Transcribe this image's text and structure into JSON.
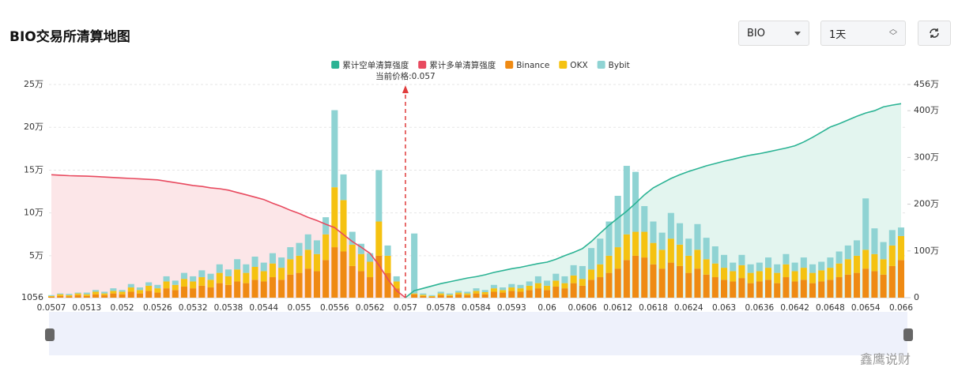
{
  "header": {
    "title": "BIO交易所清算地图",
    "symbol": "BIO",
    "period": "1天"
  },
  "watermark": "鑫鹰说财",
  "chart_data": {
    "type": "bar",
    "stacked": true,
    "grid": true,
    "annotation": {
      "label": "当前价格:",
      "value": 0.057
    },
    "categories": [
      0.0507,
      null,
      null,
      null,
      0.0513,
      null,
      null,
      null,
      0.052,
      null,
      null,
      null,
      0.0526,
      null,
      null,
      null,
      0.0532,
      null,
      null,
      null,
      0.0538,
      null,
      null,
      null,
      0.0544,
      null,
      null,
      null,
      0.055,
      null,
      null,
      null,
      0.0556,
      null,
      null,
      null,
      0.0562,
      null,
      null,
      null,
      0.057,
      null,
      null,
      null,
      0.0578,
      null,
      null,
      null,
      0.0584,
      null,
      null,
      null,
      0.0593,
      null,
      null,
      null,
      0.06,
      null,
      null,
      null,
      0.0606,
      null,
      null,
      null,
      0.0612,
      null,
      null,
      null,
      0.0618,
      null,
      null,
      null,
      0.0624,
      null,
      null,
      null,
      0.063,
      null,
      null,
      null,
      0.0636,
      null,
      null,
      null,
      0.0642,
      null,
      null,
      null,
      0.0648,
      null,
      null,
      null,
      0.0654,
      null,
      null,
      null,
      0.066
    ],
    "ylim": [
      1056,
      250000
    ],
    "yticks": [
      1056,
      {
        "value": 50000,
        "label": "5万"
      },
      {
        "value": 100000,
        "label": "10万"
      },
      {
        "value": 150000,
        "label": "15万"
      },
      {
        "value": 200000,
        "label": "20万"
      },
      {
        "value": 250000,
        "label": "25万"
      }
    ],
    "y2lim": [
      0,
      4560000
    ],
    "y2ticks": [
      0,
      {
        "value": 1000000,
        "label": "100万"
      },
      {
        "value": 2000000,
        "label": "200万"
      },
      {
        "value": 3000000,
        "label": "300万"
      },
      {
        "value": 4000000,
        "label": "400万"
      },
      {
        "value": 4560000,
        "label": "456万"
      }
    ],
    "series": [
      {
        "name": "累计空单清算强度",
        "type": "line",
        "axis": "y2",
        "color": "#2bb394",
        "fill": "#e3f5ef",
        "values": [
          null,
          null,
          null,
          null,
          null,
          null,
          null,
          null,
          null,
          null,
          null,
          null,
          null,
          null,
          null,
          null,
          null,
          null,
          null,
          null,
          null,
          null,
          null,
          null,
          null,
          null,
          null,
          null,
          null,
          null,
          null,
          null,
          null,
          null,
          null,
          null,
          null,
          null,
          null,
          null,
          0,
          150000,
          200000,
          250000,
          300000,
          340000,
          380000,
          420000,
          450000,
          490000,
          540000,
          580000,
          620000,
          650000,
          690000,
          730000,
          760000,
          820000,
          900000,
          970000,
          1050000,
          1200000,
          1380000,
          1550000,
          1700000,
          1850000,
          2020000,
          2200000,
          2350000,
          2450000,
          2550000,
          2630000,
          2700000,
          2760000,
          2820000,
          2870000,
          2920000,
          2960000,
          3010000,
          3050000,
          3080000,
          3120000,
          3160000,
          3200000,
          3250000,
          3330000,
          3430000,
          3540000,
          3650000,
          3720000,
          3800000,
          3880000,
          3950000,
          4000000,
          4080000,
          4120000,
          4150000
        ]
      },
      {
        "name": "累计多单清算强度",
        "type": "line",
        "axis": "y2",
        "color": "#e84a5f",
        "fill": "#fce6e8",
        "values": [
          2630000,
          2620000,
          2610000,
          2605000,
          2600000,
          2590000,
          2580000,
          2570000,
          2560000,
          2550000,
          2540000,
          2530000,
          2520000,
          2490000,
          2460000,
          2430000,
          2400000,
          2380000,
          2350000,
          2330000,
          2300000,
          2250000,
          2200000,
          2150000,
          2100000,
          2020000,
          1950000,
          1870000,
          1800000,
          1720000,
          1650000,
          1570000,
          1500000,
          1350000,
          1200000,
          1080000,
          950000,
          700000,
          400000,
          150000,
          0,
          null,
          null,
          null,
          null,
          null,
          null,
          null,
          null,
          null,
          null,
          null,
          null,
          null,
          null,
          null,
          null,
          null,
          null,
          null,
          null,
          null,
          null,
          null,
          null,
          null,
          null,
          null,
          null,
          null,
          null,
          null,
          null,
          null,
          null,
          null,
          null,
          null,
          null,
          null,
          null,
          null,
          null,
          null,
          null,
          null,
          null,
          null,
          null,
          null,
          null,
          null,
          null,
          null,
          null,
          null,
          null
        ]
      },
      {
        "name": "Binance",
        "color": "#ef8a13",
        "values": [
          2000,
          3000,
          2500,
          4000,
          3000,
          5000,
          4000,
          6000,
          5000,
          8000,
          6000,
          9000,
          7000,
          12000,
          10000,
          14000,
          12000,
          15000,
          13000,
          18000,
          16000,
          20000,
          18000,
          22000,
          20000,
          25000,
          22000,
          28000,
          30000,
          35000,
          32000,
          45000,
          60000,
          55000,
          38000,
          32000,
          25000,
          50000,
          30000,
          12000,
          0,
          5000,
          3000,
          2000,
          4000,
          3000,
          5000,
          4000,
          6000,
          5000,
          8000,
          7000,
          9000,
          8000,
          10000,
          12000,
          10000,
          14000,
          12000,
          18000,
          15000,
          22000,
          25000,
          30000,
          35000,
          45000,
          50000,
          48000,
          40000,
          35000,
          42000,
          38000,
          30000,
          35000,
          28000,
          25000,
          22000,
          20000,
          24000,
          18000,
          20000,
          22000,
          18000,
          25000,
          20000,
          22000,
          18000,
          20000,
          22000,
          25000,
          28000,
          30000,
          35000,
          32000,
          28000,
          38000,
          45000
        ]
      },
      {
        "name": "OKX",
        "color": "#f5c211",
        "values": [
          1000,
          2000,
          1500,
          2000,
          2000,
          3000,
          2000,
          3000,
          3000,
          5000,
          4000,
          6000,
          5000,
          8000,
          6000,
          9000,
          8000,
          10000,
          9000,
          12000,
          10000,
          14000,
          12000,
          15000,
          12000,
          16000,
          14000,
          18000,
          20000,
          22000,
          20000,
          30000,
          70000,
          60000,
          25000,
          20000,
          18000,
          40000,
          20000,
          8000,
          0,
          1000,
          1500,
          1000,
          2000,
          1500,
          2000,
          2000,
          3000,
          2500,
          4000,
          3000,
          4000,
          4000,
          5000,
          6000,
          5000,
          7000,
          6000,
          9000,
          8000,
          12000,
          15000,
          20000,
          25000,
          30000,
          28000,
          30000,
          25000,
          22000,
          28000,
          25000,
          20000,
          22000,
          18000,
          16000,
          14000,
          12000,
          15000,
          12000,
          12000,
          14000,
          12000,
          15000,
          12000,
          14000,
          12000,
          13000,
          14000,
          16000,
          18000,
          20000,
          22000,
          20000,
          18000,
          24000,
          28000
        ]
      },
      {
        "name": "Bybit",
        "color": "#8fd3d3",
        "values": [
          1000,
          1000,
          1500,
          1000,
          2000,
          2000,
          2000,
          3000,
          2000,
          4000,
          3000,
          4000,
          4000,
          6000,
          5000,
          7000,
          6000,
          8000,
          7000,
          10000,
          8000,
          12000,
          10000,
          12000,
          10000,
          12000,
          12000,
          14000,
          15000,
          18000,
          16000,
          20000,
          90000,
          30000,
          15000,
          12000,
          10000,
          60000,
          12000,
          6000,
          0,
          70000,
          1500,
          1000,
          2000,
          1500,
          2000,
          2000,
          3000,
          2500,
          4000,
          3000,
          4000,
          4000,
          5000,
          8000,
          6000,
          8000,
          8000,
          12000,
          15000,
          25000,
          30000,
          40000,
          60000,
          80000,
          70000,
          30000,
          25000,
          20000,
          30000,
          25000,
          20000,
          30000,
          25000,
          20000,
          15000,
          10000,
          12000,
          10000,
          10000,
          12000,
          10000,
          12000,
          10000,
          12000,
          10000,
          10000,
          12000,
          14000,
          16000,
          18000,
          60000,
          30000,
          20000,
          18000,
          10000
        ]
      }
    ]
  }
}
